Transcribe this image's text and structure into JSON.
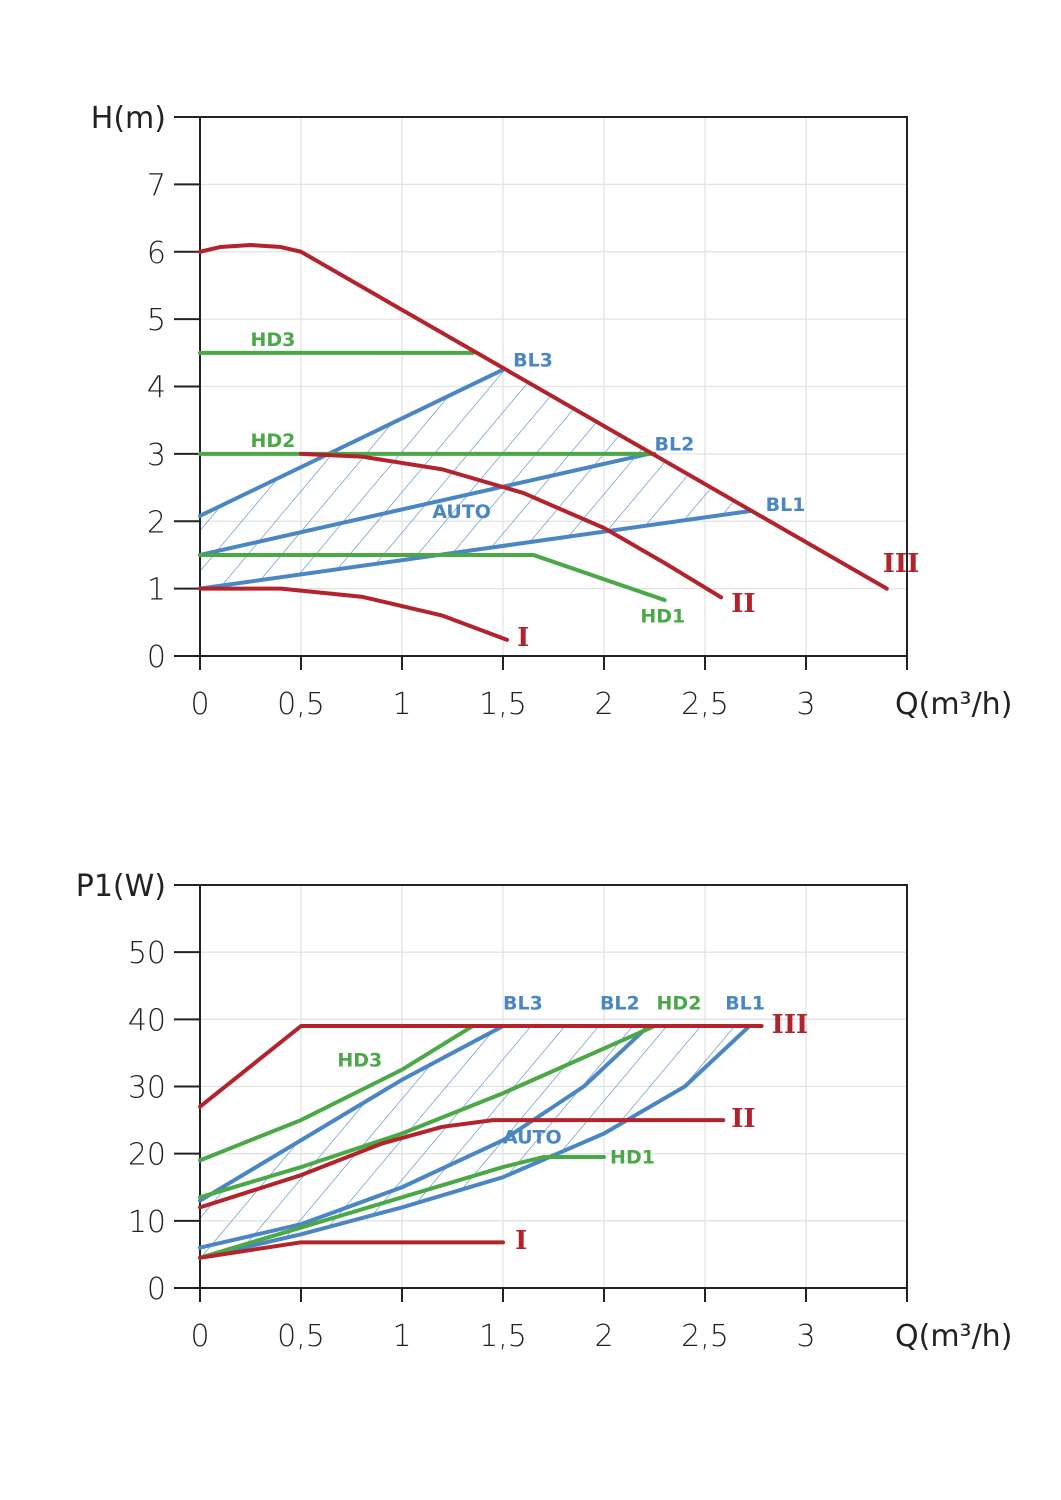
{
  "colors": {
    "red": "#b3232b",
    "green": "#4ba847",
    "blue": "#4a86c4",
    "grid": "#e3e3e3",
    "axis": "#222222"
  },
  "chart_data": [
    {
      "type": "line",
      "ylabel": "H(m)",
      "xlabel": "Q(m³/h)",
      "xlim": [
        0,
        3.5
      ],
      "ylim": [
        0,
        8
      ],
      "xticks": [
        0,
        0.5,
        1,
        1.5,
        2,
        2.5,
        3
      ],
      "xtick_labels": [
        "0",
        "0,5",
        "1",
        "1,5",
        "2",
        "2,5",
        "3"
      ],
      "yticks": [
        0,
        1,
        2,
        3,
        4,
        5,
        6,
        7
      ],
      "ytick_labels": [
        "0",
        "1",
        "2",
        "3",
        "4",
        "5",
        "6",
        "7"
      ],
      "grid": true,
      "hatched_region": {
        "label": "AUTO",
        "points": [
          [
            0,
            1.0
          ],
          [
            2.72,
            2.15
          ],
          [
            1.5,
            4.25
          ],
          [
            0,
            2.08
          ]
        ]
      },
      "series": [
        {
          "name": "III",
          "color": "red",
          "points": [
            [
              0,
              6.0
            ],
            [
              0.1,
              6.07
            ],
            [
              0.25,
              6.1
            ],
            [
              0.4,
              6.07
            ],
            [
              0.5,
              6.0
            ],
            [
              3.4,
              1.0
            ]
          ],
          "label_at": [
            3.38,
            1.25
          ]
        },
        {
          "name": "II",
          "color": "red",
          "points": [
            [
              0.5,
              3.0
            ],
            [
              0.8,
              2.96
            ],
            [
              1.2,
              2.77
            ],
            [
              1.6,
              2.42
            ],
            [
              2.0,
              1.9
            ],
            [
              2.3,
              1.38
            ],
            [
              2.58,
              0.87
            ]
          ],
          "label_at": [
            2.63,
            0.65
          ]
        },
        {
          "name": "I",
          "color": "red",
          "points": [
            [
              0,
              1.0
            ],
            [
              0.4,
              1.0
            ],
            [
              0.8,
              0.88
            ],
            [
              1.2,
              0.6
            ],
            [
              1.52,
              0.24
            ]
          ],
          "label_at": [
            1.57,
            0.15
          ]
        },
        {
          "name": "HD3",
          "color": "green",
          "points": [
            [
              0,
              4.5
            ],
            [
              1.35,
              4.5
            ]
          ],
          "label_at": [
            0.25,
            4.6
          ]
        },
        {
          "name": "HD2",
          "color": "green",
          "points": [
            [
              0,
              3.0
            ],
            [
              2.25,
              3.0
            ]
          ],
          "label_at": [
            0.25,
            3.1
          ]
        },
        {
          "name": "HD1",
          "color": "green",
          "points": [
            [
              0,
              1.5
            ],
            [
              1.65,
              1.5
            ],
            [
              2.3,
              0.83
            ]
          ],
          "label_at": [
            2.18,
            0.5
          ]
        },
        {
          "name": "BL3",
          "color": "blue",
          "points": [
            [
              0,
              2.08
            ],
            [
              1.5,
              4.25
            ]
          ],
          "label_at": [
            1.55,
            4.3
          ]
        },
        {
          "name": "BL2",
          "color": "blue",
          "points": [
            [
              0,
              1.5
            ],
            [
              2.22,
              3.0
            ]
          ],
          "label_at": [
            2.25,
            3.05
          ]
        },
        {
          "name": "BL1",
          "color": "blue",
          "points": [
            [
              0,
              1.0
            ],
            [
              2.72,
              2.15
            ]
          ],
          "label_at": [
            2.8,
            2.15
          ]
        }
      ],
      "auto_label_at": [
        1.15,
        2.05
      ]
    },
    {
      "type": "line",
      "ylabel": "P1(W)",
      "xlabel": "Q(m³/h)",
      "xlim": [
        0,
        3.5
      ],
      "ylim": [
        0,
        60
      ],
      "xticks": [
        0,
        0.5,
        1,
        1.5,
        2,
        2.5,
        3
      ],
      "xtick_labels": [
        "0",
        "0,5",
        "1",
        "1,5",
        "2",
        "2,5",
        "3"
      ],
      "yticks": [
        0,
        10,
        20,
        30,
        40,
        50
      ],
      "ytick_labels": [
        "0",
        "10",
        "20",
        "30",
        "40",
        "50"
      ],
      "grid": true,
      "hatched_region": {
        "label": "AUTO",
        "points": [
          [
            0,
            4.5
          ],
          [
            0.5,
            8
          ],
          [
            1,
            12
          ],
          [
            1.5,
            16.5
          ],
          [
            2.0,
            23
          ],
          [
            2.4,
            30
          ],
          [
            2.72,
            39
          ],
          [
            1.5,
            39
          ],
          [
            1.0,
            31
          ],
          [
            0.5,
            22
          ],
          [
            0,
            13
          ]
        ]
      },
      "series": [
        {
          "name": "III",
          "color": "red",
          "points": [
            [
              0,
              27
            ],
            [
              0.5,
              39
            ],
            [
              2.78,
              39
            ]
          ],
          "label_at": [
            2.83,
            38
          ]
        },
        {
          "name": "II",
          "color": "red",
          "points": [
            [
              0,
              12
            ],
            [
              0.5,
              16.8
            ],
            [
              0.9,
              21.5
            ],
            [
              1.2,
              24
            ],
            [
              1.45,
              25
            ],
            [
              2.59,
              25
            ]
          ],
          "label_at": [
            2.63,
            24
          ]
        },
        {
          "name": "I",
          "color": "red",
          "points": [
            [
              0,
              4.5
            ],
            [
              0.5,
              6.8
            ],
            [
              1.5,
              6.8
            ]
          ],
          "label_at": [
            1.56,
            5.8
          ]
        },
        {
          "name": "HD3",
          "color": "green",
          "points": [
            [
              0,
              19
            ],
            [
              0.5,
              25
            ],
            [
              1.0,
              32.5
            ],
            [
              1.35,
              39
            ]
          ],
          "label_at": [
            0.68,
            33
          ]
        },
        {
          "name": "HD2",
          "color": "green",
          "points": [
            [
              0,
              13.5
            ],
            [
              0.5,
              18
            ],
            [
              1.0,
              23
            ],
            [
              1.5,
              29
            ],
            [
              2.25,
              39
            ]
          ],
          "label_at": [
            2.26,
            41.5
          ]
        },
        {
          "name": "HD1",
          "color": "green",
          "points": [
            [
              0,
              4.5
            ],
            [
              0.5,
              9
            ],
            [
              1.0,
              13.5
            ],
            [
              1.5,
              18
            ],
            [
              1.7,
              19.5
            ],
            [
              2.0,
              19.5
            ]
          ],
          "label_at": [
            2.03,
            18.5
          ]
        },
        {
          "name": "BL3",
          "color": "blue",
          "points": [
            [
              0,
              13
            ],
            [
              0.5,
              22
            ],
            [
              1.0,
              31
            ],
            [
              1.5,
              39
            ]
          ],
          "label_at": [
            1.5,
            41.5
          ]
        },
        {
          "name": "BL2",
          "color": "blue",
          "points": [
            [
              0,
              6
            ],
            [
              0.5,
              9.5
            ],
            [
              1.0,
              15
            ],
            [
              1.5,
              22
            ],
            [
              1.9,
              30
            ],
            [
              2.22,
              39
            ]
          ],
          "label_at": [
            1.98,
            41.5
          ]
        },
        {
          "name": "BL1",
          "color": "blue",
          "points": [
            [
              0,
              4.5
            ],
            [
              0.5,
              8
            ],
            [
              1.0,
              12
            ],
            [
              1.5,
              16.5
            ],
            [
              2.0,
              23
            ],
            [
              2.4,
              30
            ],
            [
              2.72,
              39
            ]
          ],
          "label_at": [
            2.6,
            41.5
          ]
        }
      ],
      "auto_label_at": [
        1.5,
        21.5
      ]
    }
  ]
}
